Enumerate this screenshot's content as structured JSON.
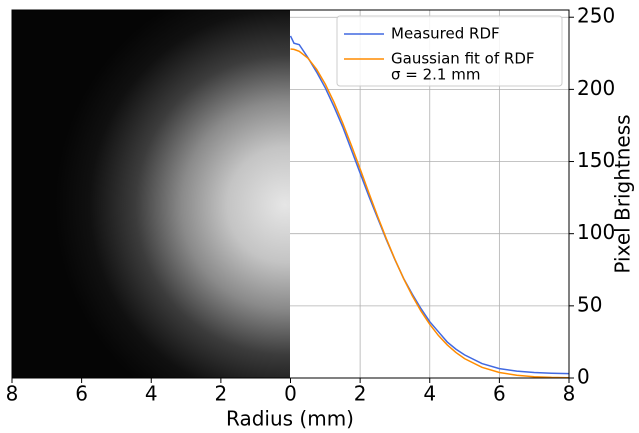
{
  "chart_data": {
    "type": "line",
    "x_label": "Radius (mm)",
    "y_label": "Pixel Brightness",
    "x": [
      0,
      0.1,
      0.25,
      0.5,
      0.75,
      1,
      1.25,
      1.5,
      1.75,
      2,
      2.25,
      2.5,
      2.75,
      3,
      3.25,
      3.5,
      3.75,
      4,
      4.25,
      4.5,
      4.75,
      5,
      5.5,
      6,
      6.5,
      7,
      7.5,
      8
    ],
    "series": [
      {
        "name": "Measured RDF",
        "color": "#4169e1",
        "values": [
          237,
          232,
          231,
          222,
          212,
          201,
          188,
          174,
          158,
          142,
          126,
          111,
          96,
          82,
          69,
          58,
          48,
          39,
          32,
          25,
          20,
          16,
          10,
          6.5,
          4.8,
          3.8,
          3.3,
          3
        ]
      },
      {
        "name": "Gaussian fit of RDF",
        "color": "#ff8c00",
        "values": [
          228,
          227.7,
          226.4,
          221.6,
          213.9,
          203.6,
          191.0,
          176.7,
          161.1,
          144.9,
          128.4,
          112.2,
          96.7,
          82.2,
          68.8,
          56.9,
          46.3,
          37.2,
          29.4,
          23.0,
          17.7,
          13.4,
          7.4,
          3.8,
          1.9,
          0.9,
          0.4,
          0.2
        ]
      }
    ],
    "fit_annotation": "σ = 2.1 mm",
    "xlim": [
      -8,
      8
    ],
    "xticks": [
      {
        "value": -8,
        "label": "8"
      },
      {
        "value": -6,
        "label": "6"
      },
      {
        "value": -4,
        "label": "4"
      },
      {
        "value": -2,
        "label": "2"
      },
      0,
      2,
      4,
      6,
      8
    ],
    "ylim": [
      0,
      255
    ],
    "yticks": [
      0,
      50,
      100,
      150,
      200,
      250
    ],
    "grid": true
  }
}
